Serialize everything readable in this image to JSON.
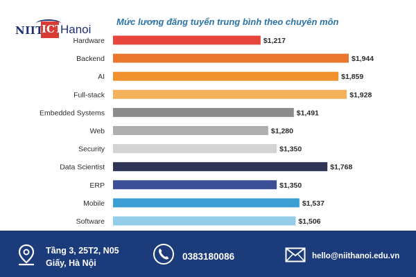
{
  "brand": {
    "niit": "NIIT",
    "ict": "ICT",
    "hanoi": "Hanoi"
  },
  "chart_data": {
    "type": "bar",
    "orientation": "horizontal",
    "title": "Mức lương đăng tuyển trung bình theo chuyên môn",
    "categories": [
      "Hardware",
      "Backend",
      "AI",
      "Full-stack",
      "Embedded Systems",
      "Web",
      "Security",
      "Data Scientist",
      "ERP",
      "Mobile",
      "Software"
    ],
    "values": [
      1217,
      1944,
      1859,
      1928,
      1491,
      1280,
      1350,
      1768,
      1350,
      1537,
      1506
    ],
    "value_labels": [
      "$1,217",
      "$1,944",
      "$1,859",
      "$1,928",
      "$1,491",
      "$1,280",
      "$1,350",
      "$1,768",
      "$1,350",
      "$1,537",
      "$1,506"
    ],
    "colors": [
      "#e8453c",
      "#e9772e",
      "#f0902e",
      "#f4b25a",
      "#8c8c8c",
      "#aeaeae",
      "#d3d3d3",
      "#2e3557",
      "#3c4f96",
      "#3b9fd3",
      "#93cdea"
    ],
    "xlim": [
      0,
      1944
    ],
    "grid": false,
    "legend": "none"
  },
  "footer": {
    "address_line1": "Tầng 3, 25T2, N05",
    "address_line2": "Giấy, Hà Nội",
    "phone": "0383180086",
    "email": "hello@niithanoi.edu.vn",
    "icons": [
      "location-icon",
      "phone-icon",
      "mail-icon"
    ]
  }
}
